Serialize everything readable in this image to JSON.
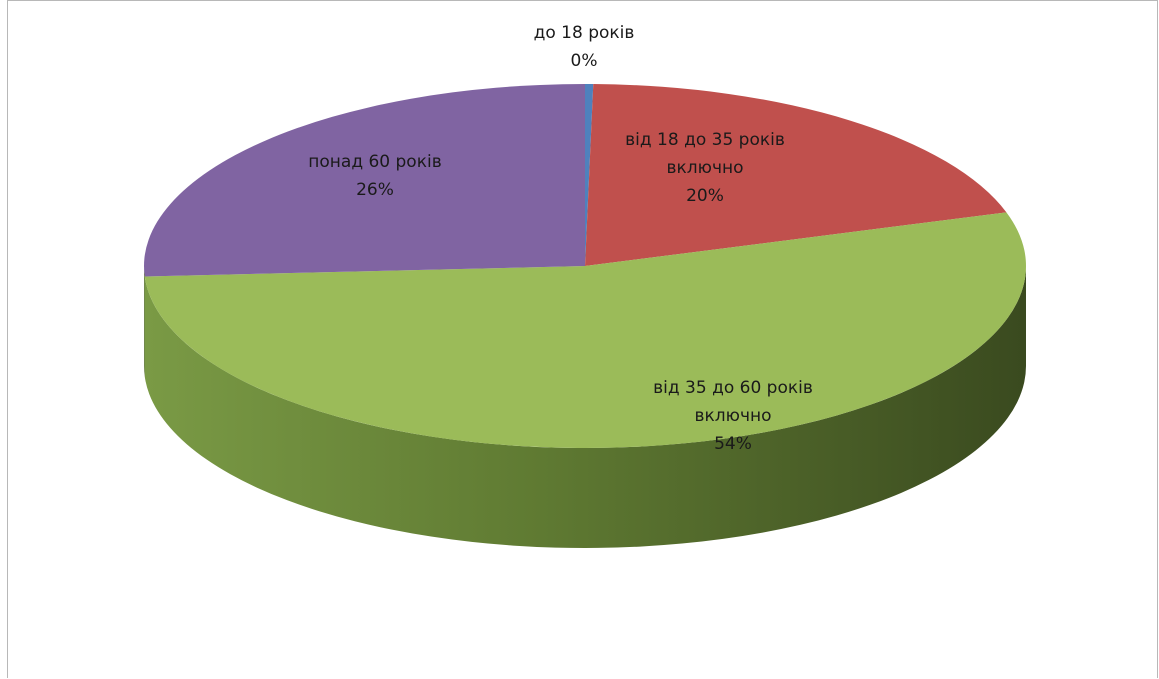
{
  "chart_data": {
    "type": "pie",
    "title": "",
    "three_d": true,
    "legend": "none",
    "categories": [
      "до 18 років",
      "від 18 до 35 років включно",
      "від 35 до 60 років включно",
      "понад 60 років"
    ],
    "values": [
      0.3,
      20,
      54,
      26
    ],
    "slices": [
      {
        "lines": [
          "до 18 років"
        ],
        "percent_label": "0%",
        "color": "#4f81bd"
      },
      {
        "lines": [
          "від 18 до 35 років",
          "включно"
        ],
        "percent_label": "20%",
        "color": "#c0504d"
      },
      {
        "lines": [
          "від 35 до 60 років",
          "включно"
        ],
        "percent_label": "54%",
        "color": "#9bbb59"
      },
      {
        "lines": [
          "понад 60 років"
        ],
        "percent_label": "26%",
        "color": "#8064a2"
      }
    ]
  }
}
